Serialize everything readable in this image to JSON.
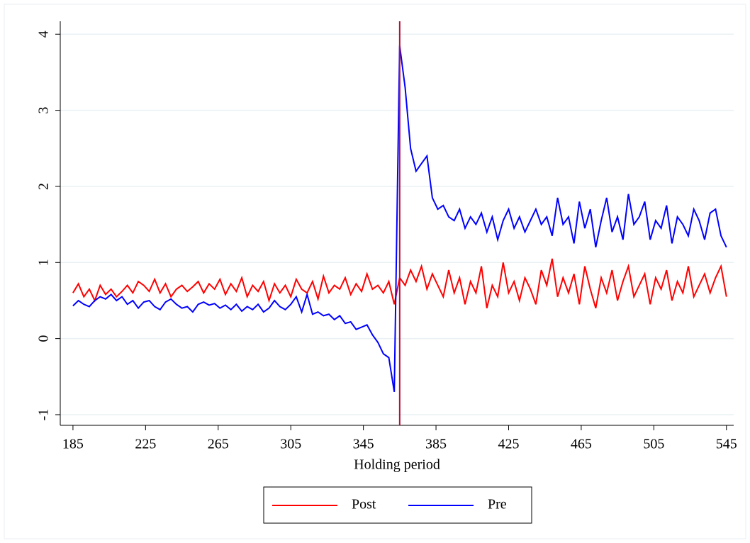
{
  "chart_data": {
    "type": "line",
    "x_label": "Holding period",
    "vline": 365,
    "vline_color": "#b3103a",
    "xlim": [
      178,
      549
    ],
    "ylim": [
      -1.14,
      4.17
    ],
    "xticks": [
      185,
      225,
      265,
      305,
      345,
      385,
      425,
      465,
      505,
      545
    ],
    "yticks": [
      -1,
      0,
      1,
      2,
      3,
      4
    ],
    "grid": true,
    "legend": "bottom",
    "x": [
      185,
      188,
      191,
      194,
      197,
      200,
      203,
      206,
      209,
      212,
      215,
      218,
      221,
      224,
      227,
      230,
      233,
      236,
      239,
      242,
      245,
      248,
      251,
      254,
      257,
      260,
      263,
      266,
      269,
      272,
      275,
      278,
      281,
      284,
      287,
      290,
      293,
      296,
      299,
      302,
      305,
      308,
      311,
      314,
      317,
      320,
      323,
      326,
      329,
      332,
      335,
      338,
      341,
      344,
      347,
      350,
      353,
      356,
      359,
      362,
      365,
      368,
      371,
      374,
      377,
      380,
      383,
      386,
      389,
      392,
      395,
      398,
      401,
      404,
      407,
      410,
      413,
      416,
      419,
      422,
      425,
      428,
      431,
      434,
      437,
      440,
      443,
      446,
      449,
      452,
      455,
      458,
      461,
      464,
      467,
      470,
      473,
      476,
      479,
      482,
      485,
      488,
      491,
      494,
      497,
      500,
      503,
      506,
      509,
      512,
      515,
      518,
      521,
      524,
      527,
      530,
      533,
      536,
      539,
      542,
      545
    ],
    "series": [
      {
        "name": "Post",
        "color": "#ff0000",
        "values": [
          0.6,
          0.72,
          0.55,
          0.65,
          0.5,
          0.7,
          0.58,
          0.65,
          0.55,
          0.62,
          0.7,
          0.6,
          0.75,
          0.7,
          0.62,
          0.78,
          0.6,
          0.72,
          0.55,
          0.65,
          0.7,
          0.62,
          0.68,
          0.75,
          0.6,
          0.72,
          0.65,
          0.78,
          0.58,
          0.72,
          0.62,
          0.8,
          0.55,
          0.7,
          0.62,
          0.75,
          0.5,
          0.72,
          0.6,
          0.7,
          0.55,
          0.78,
          0.65,
          0.6,
          0.75,
          0.52,
          0.82,
          0.6,
          0.7,
          0.65,
          0.8,
          0.58,
          0.72,
          0.62,
          0.85,
          0.65,
          0.7,
          0.6,
          0.75,
          0.45,
          0.8,
          0.7,
          0.9,
          0.75,
          0.95,
          0.65,
          0.85,
          0.7,
          0.55,
          0.9,
          0.6,
          0.8,
          0.45,
          0.75,
          0.6,
          0.95,
          0.4,
          0.7,
          0.55,
          1.0,
          0.6,
          0.75,
          0.5,
          0.8,
          0.65,
          0.45,
          0.9,
          0.7,
          1.05,
          0.55,
          0.8,
          0.6,
          0.85,
          0.45,
          0.95,
          0.65,
          0.4,
          0.8,
          0.6,
          0.9,
          0.5,
          0.75,
          0.95,
          0.55,
          0.7,
          0.85,
          0.45,
          0.8,
          0.65,
          0.9,
          0.5,
          0.75,
          0.6,
          0.95,
          0.55,
          0.7,
          0.85,
          0.6,
          0.8,
          0.95,
          0.55
        ]
      },
      {
        "name": "Pre",
        "color": "#0000ff",
        "values": [
          0.43,
          0.5,
          0.45,
          0.42,
          0.5,
          0.55,
          0.52,
          0.58,
          0.5,
          0.55,
          0.45,
          0.5,
          0.4,
          0.48,
          0.5,
          0.42,
          0.38,
          0.48,
          0.52,
          0.45,
          0.4,
          0.42,
          0.35,
          0.45,
          0.48,
          0.44,
          0.46,
          0.4,
          0.44,
          0.38,
          0.45,
          0.36,
          0.42,
          0.38,
          0.45,
          0.35,
          0.4,
          0.5,
          0.42,
          0.38,
          0.45,
          0.55,
          0.35,
          0.58,
          0.32,
          0.35,
          0.3,
          0.32,
          0.25,
          0.3,
          0.2,
          0.22,
          0.12,
          0.15,
          0.18,
          0.05,
          -0.05,
          -0.2,
          -0.25,
          -0.7,
          3.85,
          3.3,
          2.5,
          2.2,
          2.3,
          2.4,
          1.85,
          1.7,
          1.75,
          1.6,
          1.55,
          1.7,
          1.45,
          1.6,
          1.5,
          1.65,
          1.4,
          1.6,
          1.3,
          1.55,
          1.7,
          1.45,
          1.6,
          1.4,
          1.55,
          1.7,
          1.5,
          1.6,
          1.35,
          1.85,
          1.5,
          1.6,
          1.25,
          1.8,
          1.45,
          1.7,
          1.2,
          1.55,
          1.85,
          1.4,
          1.6,
          1.3,
          1.9,
          1.5,
          1.6,
          1.8,
          1.3,
          1.55,
          1.45,
          1.75,
          1.25,
          1.6,
          1.5,
          1.35,
          1.7,
          1.55,
          1.3,
          1.65,
          1.7,
          1.35,
          1.2
        ]
      }
    ]
  }
}
